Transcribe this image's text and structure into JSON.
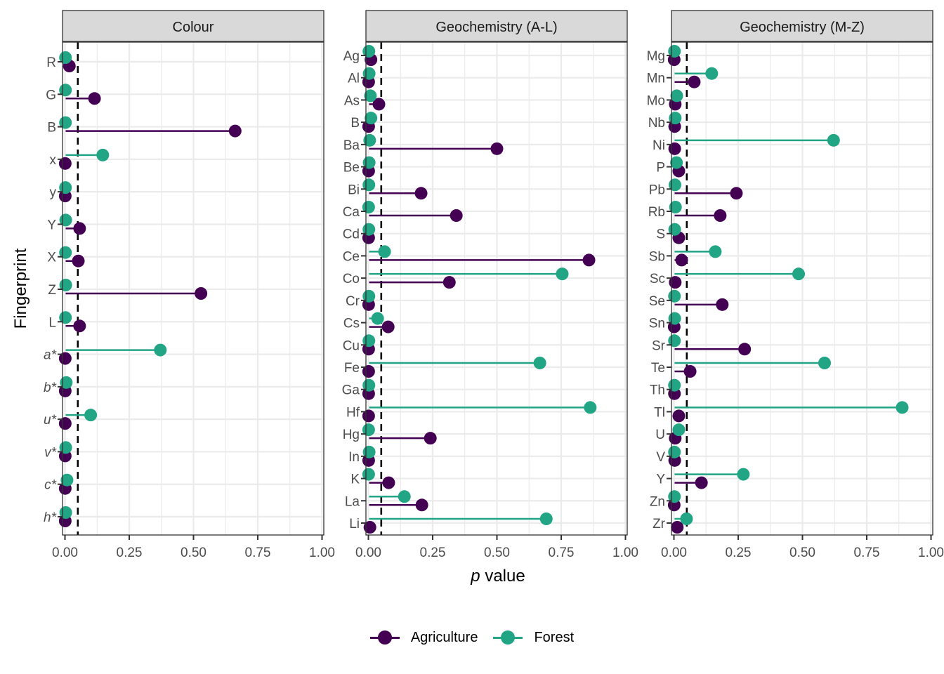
{
  "chart_data": {
    "type": "lollipop",
    "ylabel": "Fingerprint",
    "xlabel_italic": "p",
    "xlabel_rest": " value",
    "xlim": [
      0,
      1
    ],
    "xticks": [
      "0.00",
      "0.25",
      "0.50",
      "0.75",
      "1.00"
    ],
    "xtick_values": [
      0,
      0.25,
      0.5,
      0.75,
      1.0
    ],
    "reference_line": 0.05,
    "grid": true,
    "legend_position": "bottom",
    "series_colors": {
      "Agriculture": "#440154",
      "Forest": "#21a585"
    },
    "legend": [
      {
        "name": "Agriculture",
        "color": "#440154"
      },
      {
        "name": "Forest",
        "color": "#21a585"
      }
    ],
    "panels": [
      {
        "title": "Colour",
        "categories": [
          "R",
          "G",
          "B",
          "x",
          "y",
          "Y",
          "X",
          "Z",
          "L",
          "a*",
          "b*",
          "u*",
          "v*",
          "c*",
          "h*"
        ],
        "italic": [
          false,
          false,
          false,
          false,
          false,
          false,
          false,
          false,
          false,
          true,
          true,
          true,
          true,
          true,
          true
        ],
        "series": [
          {
            "name": "Agriculture",
            "values": [
              0.017,
              0.115,
              0.662,
              0.001,
              0.001,
              0.057,
              0.052,
              0.529,
              0.057,
              0.001,
              0.001,
              0.001,
              0.001,
              0.001,
              0.001
            ]
          },
          {
            "name": "Forest",
            "values": [
              0.002,
              0.002,
              0.002,
              0.147,
              0.002,
              0.003,
              0.002,
              0.003,
              0.002,
              0.371,
              0.005,
              0.1,
              0.003,
              0.008,
              0.003
            ]
          }
        ]
      },
      {
        "title": "Geochemistry (A-L)",
        "categories": [
          "Ag",
          "Al",
          "As",
          "B",
          "Ba",
          "Be",
          "Bi",
          "Ca",
          "Cd",
          "Ce",
          "Co",
          "Cr",
          "Cs",
          "Cu",
          "Fe",
          "Ga",
          "Hf",
          "Hg",
          "In",
          "K",
          "La",
          "Li"
        ],
        "series": [
          {
            "name": "Agriculture",
            "values": [
              0.01,
              0.001,
              0.041,
              0.001,
              0.5,
              0.001,
              0.205,
              0.342,
              0.001,
              0.858,
              0.315,
              0.001,
              0.077,
              0.001,
              0.001,
              0.001,
              0.001,
              0.241,
              0.001,
              0.079,
              0.208,
              0.006
            ]
          },
          {
            "name": "Forest",
            "values": [
              0.002,
              0.003,
              0.008,
              0.01,
              0.005,
              0.003,
              0.002,
              0.001,
              0.002,
              0.063,
              0.754,
              0.002,
              0.036,
              0.002,
              0.667,
              0.002,
              0.863,
              0.001,
              0.003,
              0.001,
              0.14,
              0.692
            ]
          }
        ]
      },
      {
        "title": "Geochemistry (M-Z)",
        "categories": [
          "Mg",
          "Mn",
          "Mo",
          "Nb",
          "Ni",
          "P",
          "Pb",
          "Rb",
          "S",
          "Sb",
          "Sc",
          "Se",
          "Sn",
          "Sr",
          "Te",
          "Th",
          "Tl",
          "U",
          "V",
          "Y",
          "Zn",
          "Zr"
        ],
        "series": [
          {
            "name": "Agriculture",
            "values": [
              0.001,
              0.079,
              0.005,
              0.003,
              0.003,
              0.019,
              0.243,
              0.18,
              0.019,
              0.03,
              0.005,
              0.188,
              0.001,
              0.275,
              0.063,
              0.002,
              0.019,
              0.005,
              0.003,
              0.107,
              0.001,
              0.013
            ]
          },
          {
            "name": "Forest",
            "values": [
              0.002,
              0.147,
              0.011,
              0.005,
              0.621,
              0.01,
              0.004,
              0.006,
              0.003,
              0.161,
              0.485,
              0.002,
              0.003,
              0.002,
              0.586,
              0.002,
              0.888,
              0.019,
              0.002,
              0.27,
              0.002,
              0.049
            ]
          }
        ]
      }
    ]
  }
}
